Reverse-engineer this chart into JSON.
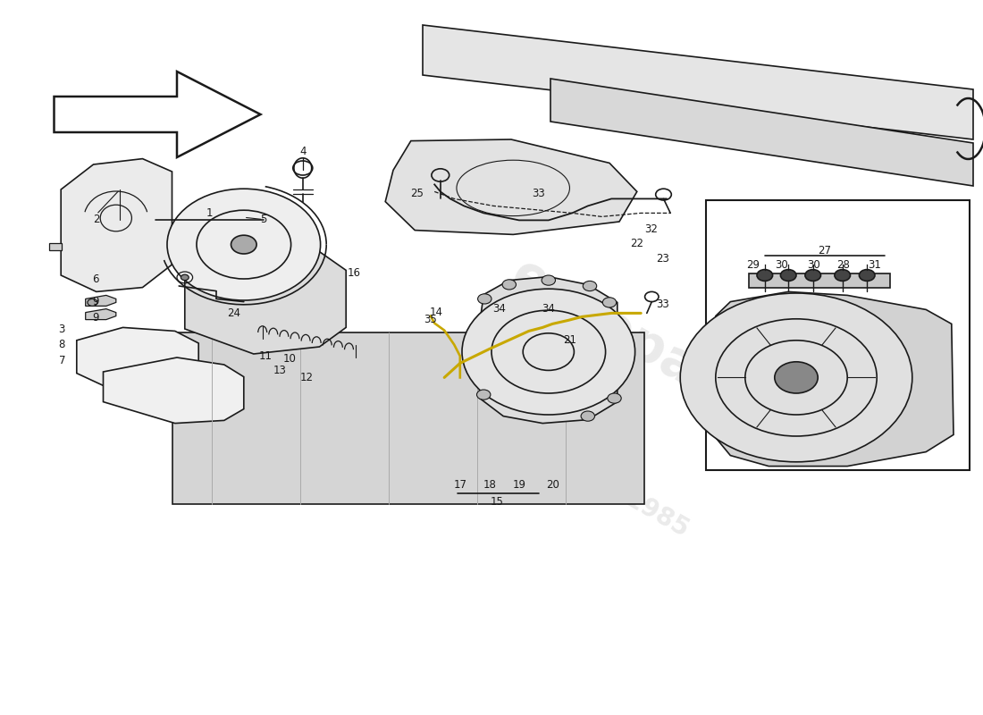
{
  "background_color": "#ffffff",
  "line_color": "#1a1a1a",
  "watermark_color": "#cccccc"
}
